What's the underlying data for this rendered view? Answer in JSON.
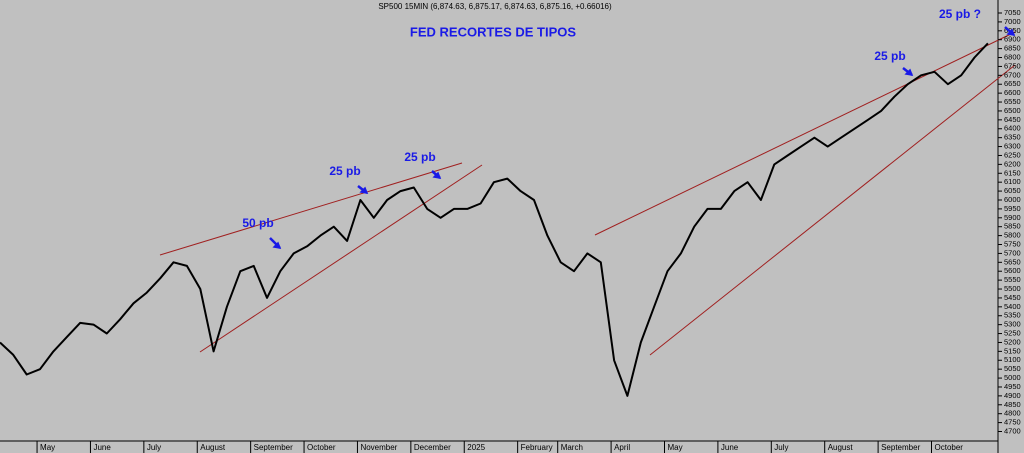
{
  "chart_data": {
    "type": "line",
    "header": "SP500 15MIN (6,874.63, 6,875.17, 6,874.63, 6,875.16, +0.66016)",
    "title": "FED RECORTES DE TIPOS",
    "annotations": [
      "50 pb",
      "25 pb",
      "25 pb",
      "25 pb",
      "25 pb ?"
    ],
    "categories": [
      null,
      null,
      null,
      "May",
      null,
      null,
      null,
      "June",
      null,
      null,
      null,
      "July",
      null,
      null,
      null,
      "August",
      null,
      null,
      null,
      "September",
      null,
      null,
      null,
      "October",
      null,
      null,
      null,
      "November",
      null,
      null,
      null,
      "December",
      null,
      null,
      null,
      "2025",
      null,
      null,
      null,
      "February",
      null,
      null,
      "March",
      null,
      null,
      null,
      "April",
      null,
      null,
      null,
      "May",
      null,
      null,
      null,
      "June",
      null,
      null,
      null,
      "July",
      null,
      null,
      null,
      "August",
      null,
      null,
      null,
      "September",
      null,
      null,
      null,
      "October",
      null,
      null,
      null,
      null
    ],
    "values": [
      5200,
      5130,
      5020,
      5050,
      5150,
      5230,
      5310,
      5300,
      5250,
      5330,
      5420,
      5480,
      5560,
      5650,
      5630,
      5500,
      5150,
      5400,
      5600,
      5630,
      5450,
      5600,
      5700,
      5740,
      5800,
      5850,
      5770,
      6000,
      5900,
      6000,
      6050,
      6070,
      5950,
      5900,
      5950,
      5950,
      5980,
      6100,
      6120,
      6050,
      6000,
      5800,
      5650,
      5600,
      5700,
      5650,
      5100,
      4900,
      5200,
      5400,
      5600,
      5700,
      5850,
      5950,
      5950,
      6050,
      6100,
      6000,
      6200,
      6250,
      6300,
      6350,
      6300,
      6350,
      6400,
      6450,
      6500,
      6580,
      6650,
      6700,
      6720,
      6650,
      6700,
      6800,
      6880
    ],
    "color": "#000000",
    "ylim": [
      4650,
      7050
    ],
    "yticks": [
      4700,
      4750,
      4800,
      4850,
      4900,
      4950,
      5000,
      5050,
      5100,
      5150,
      5200,
      5250,
      5300,
      5350,
      5400,
      5450,
      5500,
      5550,
      5600,
      5650,
      5700,
      5750,
      5800,
      5850,
      5900,
      5950,
      6000,
      6050,
      6100,
      6150,
      6200,
      6250,
      6300,
      6350,
      6400,
      6450,
      6500,
      6550,
      6600,
      6650,
      6700,
      6750,
      6800,
      6850,
      6900,
      6950,
      7000,
      7050
    ]
  }
}
